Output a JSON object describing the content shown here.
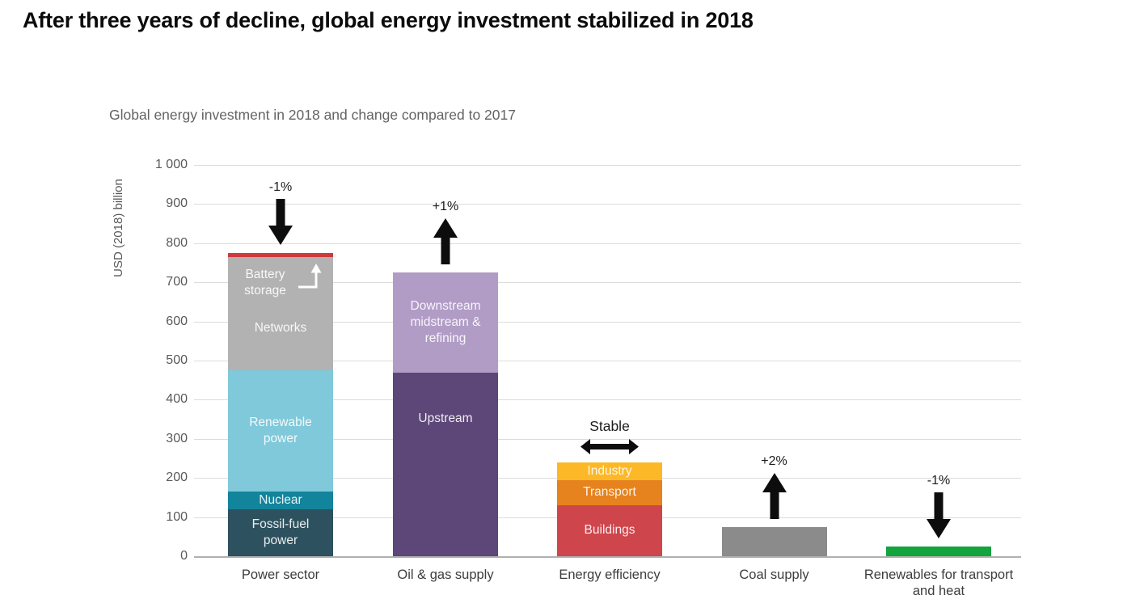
{
  "page": {
    "title": "After three years of decline, global energy investment stabilized in 2018",
    "subtitle": "Global energy investment in 2018 and change compared to 2017"
  },
  "chart_data": {
    "type": "bar",
    "stacked": true,
    "title": "Global energy investment in 2018 and change compared to 2017",
    "xlabel": "",
    "ylabel": "USD (2018) billion",
    "ylim": [
      0,
      1000
    ],
    "ytick_interval": 100,
    "ytick_labels": [
      "0",
      "100",
      "200",
      "300",
      "400",
      "500",
      "600",
      "700",
      "800",
      "900",
      "1 000"
    ],
    "grid": true,
    "units": "USD (2018) billion",
    "categories": [
      "Power sector",
      "Oil & gas supply",
      "Energy efficiency",
      "Coal supply",
      "Renewables for transport and heat"
    ],
    "bars": [
      {
        "category": "Power sector",
        "total": 775,
        "change": {
          "label": "-1%",
          "direction": "down"
        },
        "callout": {
          "label": "Battery storage",
          "anchor_segment": "Networks",
          "points_to": "Battery storage"
        },
        "segments": [
          {
            "name": "Fossil-fuel power",
            "label": "Fossil-fuel power",
            "value": 120,
            "color": "#2d515e"
          },
          {
            "name": "Nuclear",
            "label": "Nuclear",
            "value": 45,
            "color": "#12849b"
          },
          {
            "name": "Renewable power",
            "label": "Renewable power",
            "value": 310,
            "color": "#7fc9da"
          },
          {
            "name": "Networks",
            "label": "Networks",
            "value": 290,
            "color": "#b3b2b2",
            "label_pos": "lower"
          },
          {
            "name": "Battery storage",
            "label": "",
            "value": 10,
            "color": "#cd3a3c"
          }
        ]
      },
      {
        "category": "Oil & gas supply",
        "total": 725,
        "change": {
          "label": "+1%",
          "direction": "up"
        },
        "segments": [
          {
            "name": "Upstream",
            "label": "Upstream",
            "value": 470,
            "color": "#5d4678",
            "label_pos": "upper"
          },
          {
            "name": "Downstream midstream & refining",
            "label": "Downstream midstream & refining",
            "value": 255,
            "color": "#b19cc6"
          }
        ]
      },
      {
        "category": "Energy efficiency",
        "total": 240,
        "change": {
          "label": "Stable",
          "direction": "stable"
        },
        "segments": [
          {
            "name": "Buildings",
            "label": "Buildings",
            "value": 130,
            "color": "#ce454c"
          },
          {
            "name": "Transport",
            "label": "Transport",
            "value": 65,
            "color": "#e6831e"
          },
          {
            "name": "Industry",
            "label": "Industry",
            "value": 45,
            "color": "#fcb826"
          }
        ]
      },
      {
        "category": "Coal supply",
        "total": 75,
        "change": {
          "label": "+2%",
          "direction": "up"
        },
        "segments": [
          {
            "name": "Coal supply",
            "label": "",
            "value": 75,
            "color": "#8b8b8b"
          }
        ]
      },
      {
        "category": "Renewables for transport and heat",
        "total": 25,
        "change": {
          "label": "-1%",
          "direction": "down"
        },
        "segments": [
          {
            "name": "Renewables for transport and heat",
            "label": "",
            "value": 25,
            "color": "#13a43e"
          }
        ]
      }
    ],
    "colors": {
      "grid": "#dcdcdc",
      "baseline": "#b0b0b0",
      "arrow": "#0d0d0d",
      "tick_text": "#595959",
      "category_text": "#3d3d3d"
    }
  }
}
